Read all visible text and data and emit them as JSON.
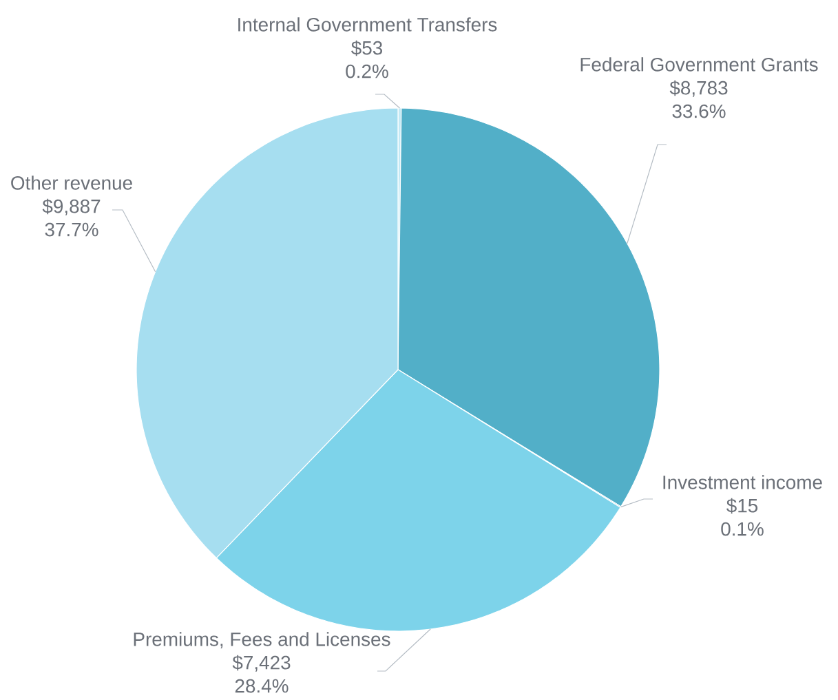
{
  "chart_data": {
    "type": "pie",
    "categories": [
      "Internal Government Transfers",
      "Federal Government Grants",
      "Investment income",
      "Premiums, Fees and Licenses",
      "Other revenue"
    ],
    "values": [
      53,
      8783,
      15,
      7423,
      9887
    ],
    "colors": [
      "#c4e9f5",
      "#52afc8",
      "#3f98b3",
      "#7dd3ea",
      "#a6def0"
    ],
    "value_labels": [
      "$53",
      "$8,783",
      "$15",
      "$7,423",
      "$9,887"
    ],
    "annotations": [
      {
        "text": "0.2%",
        "x": "Internal Government Transfers"
      },
      {
        "text": "33.6%",
        "x": "Federal Government Grants"
      },
      {
        "text": "0.1%",
        "x": "Investment income"
      },
      {
        "text": "28.4%",
        "x": "Premiums, Fees and Licenses"
      },
      {
        "text": "37.7%",
        "x": "Other revenue"
      }
    ]
  }
}
